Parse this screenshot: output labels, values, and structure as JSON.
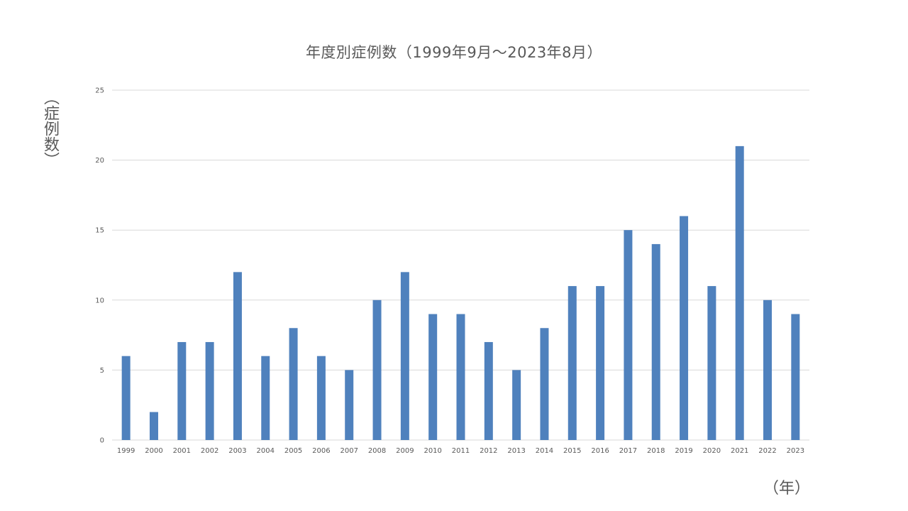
{
  "chart_data": {
    "type": "bar",
    "title": "年度別症例数（1999年9月～2023年8月）",
    "xlabel": "（年）",
    "ylabel": "（症例数）",
    "categories": [
      "1999",
      "2000",
      "2001",
      "2002",
      "2003",
      "2004",
      "2005",
      "2006",
      "2007",
      "2008",
      "2009",
      "2010",
      "2011",
      "2012",
      "2013",
      "2014",
      "2015",
      "2016",
      "2017",
      "2018",
      "2019",
      "2020",
      "2021",
      "2022",
      "2023"
    ],
    "values": [
      6,
      2,
      7,
      7,
      12,
      6,
      8,
      6,
      5,
      10,
      12,
      9,
      9,
      7,
      5,
      8,
      11,
      11,
      15,
      14,
      16,
      11,
      21,
      10,
      9
    ],
    "ylim": [
      0,
      25
    ],
    "yticks": [
      0,
      5,
      10,
      15,
      20,
      25
    ],
    "grid": true,
    "legend": "none",
    "bar_color": "#4F81BD",
    "grid_color": "#D9D9D9"
  }
}
